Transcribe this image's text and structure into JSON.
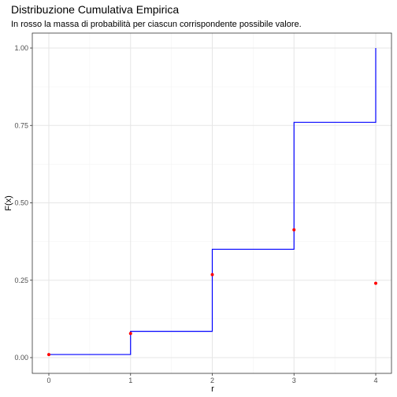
{
  "chart_data": {
    "type": "line",
    "title": "Distribuzione Cumulativa Empirica",
    "subtitle": "In rosso la massa di probabilità per ciascun corrispondente possibile valore.",
    "xlabel": "r",
    "ylabel": "F(x)",
    "xlim": [
      0,
      4
    ],
    "ylim": [
      0,
      1
    ],
    "x_ticks": [
      0,
      1,
      2,
      3,
      4
    ],
    "x_tick_labels": [
      "0",
      "1",
      "2",
      "3",
      "4"
    ],
    "y_ticks": [
      0,
      0.25,
      0.5,
      0.75,
      1
    ],
    "y_tick_labels": [
      "0.00",
      "0.25",
      "0.50",
      "0.75",
      "1.00"
    ],
    "grid": true,
    "series": [
      {
        "kind": "step",
        "x": [
          0,
          1,
          2,
          3,
          4
        ],
        "values": [
          0.01,
          0.085,
          0.35,
          0.76,
          1.0
        ],
        "color": "#0000ff"
      },
      {
        "kind": "points",
        "x": [
          0,
          1,
          2,
          3,
          4
        ],
        "values": [
          0.01,
          0.078,
          0.268,
          0.413,
          0.24
        ],
        "color": "#ff0000"
      }
    ]
  }
}
